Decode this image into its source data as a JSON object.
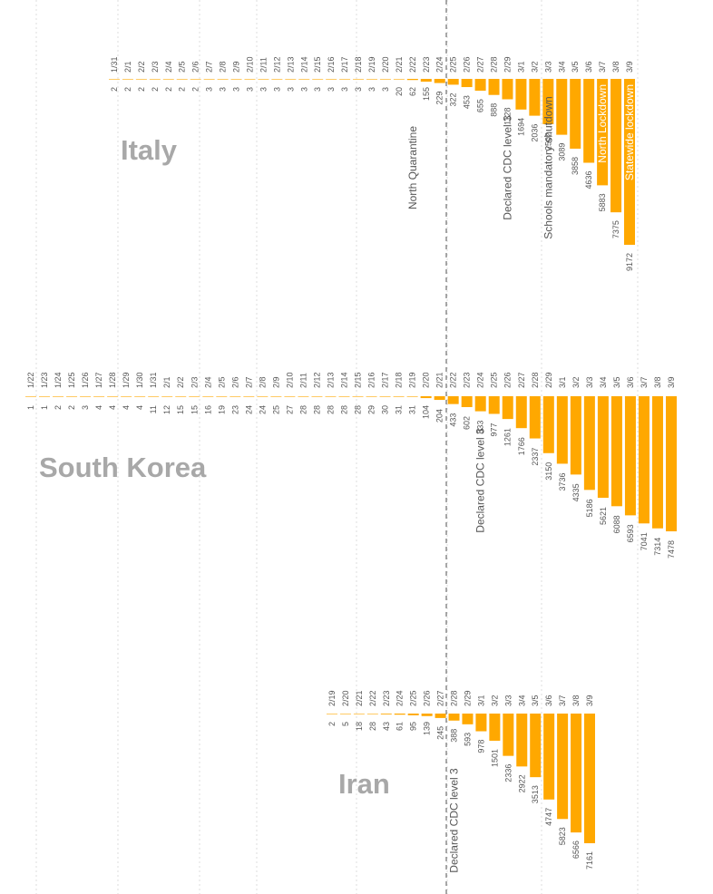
{
  "colors": {
    "bar": "#ffa800",
    "grid": "#dddddd",
    "dashed": "#8c8c8c",
    "title": "#a8a8a8",
    "text": "#555555",
    "inside_text": "#ffffff"
  },
  "chart_data": [
    {
      "type": "bar",
      "orientation": "vertical-down",
      "title": "Italy",
      "categories": [
        "1/31",
        "2/1",
        "2/2",
        "2/3",
        "2/4",
        "2/5",
        "2/6",
        "2/7",
        "2/8",
        "2/9",
        "2/10",
        "2/11",
        "2/12",
        "2/13",
        "2/14",
        "2/15",
        "2/16",
        "2/17",
        "2/18",
        "2/19",
        "2/20",
        "2/21",
        "2/22",
        "2/23",
        "2/24",
        "2/25",
        "2/26",
        "2/27",
        "2/28",
        "2/29",
        "3/1",
        "3/2",
        "3/3",
        "3/4",
        "3/5",
        "3/6",
        "3/7",
        "3/8",
        "3/9"
      ],
      "values": [
        2,
        2,
        2,
        2,
        2,
        2,
        2,
        3,
        3,
        3,
        3,
        3,
        3,
        3,
        3,
        3,
        3,
        3,
        3,
        3,
        3,
        20,
        62,
        155,
        229,
        322,
        453,
        655,
        888,
        1128,
        1694,
        2036,
        2502,
        3089,
        3858,
        4636,
        5883,
        7375,
        9172
      ],
      "ylim": [
        0,
        9172
      ],
      "grid": true,
      "annotations": [
        {
          "category": "2/22",
          "text": "North Quarantine"
        },
        {
          "category": "2/29",
          "text": "Declared CDC level 3"
        },
        {
          "category": "3/3",
          "text": "Schools mandatory shutdown"
        },
        {
          "category": "3/7",
          "text": "North Lockdown"
        },
        {
          "category": "3/9",
          "text": "Statewide lockdown"
        }
      ]
    },
    {
      "type": "bar",
      "orientation": "vertical-down",
      "title": "South Korea",
      "categories": [
        "1/22",
        "1/23",
        "1/24",
        "1/25",
        "1/26",
        "1/27",
        "1/28",
        "1/29",
        "1/30",
        "1/31",
        "2/1",
        "2/2",
        "2/3",
        "2/4",
        "2/5",
        "2/6",
        "2/7",
        "2/8",
        "2/9",
        "2/10",
        "2/11",
        "2/12",
        "2/13",
        "2/14",
        "2/15",
        "2/16",
        "2/17",
        "2/18",
        "2/19",
        "2/20",
        "2/21",
        "2/22",
        "2/23",
        "2/24",
        "2/25",
        "2/26",
        "2/27",
        "2/28",
        "2/29",
        "3/1",
        "3/2",
        "3/3",
        "3/4",
        "3/5",
        "3/6",
        "3/7",
        "3/8",
        "3/9"
      ],
      "values": [
        1,
        1,
        2,
        2,
        3,
        4,
        4,
        4,
        4,
        11,
        12,
        15,
        15,
        16,
        19,
        23,
        24,
        24,
        25,
        27,
        28,
        28,
        28,
        28,
        28,
        29,
        30,
        31,
        31,
        104,
        204,
        433,
        602,
        833,
        977,
        1261,
        1766,
        2337,
        3150,
        3736,
        4335,
        5186,
        5621,
        6088,
        6593,
        7041,
        7314,
        7478
      ],
      "ylim": [
        0,
        7478
      ],
      "grid": true,
      "annotations": [
        {
          "category": "2/24",
          "text": "Declared CDC level 3"
        }
      ]
    },
    {
      "type": "bar",
      "orientation": "vertical-down",
      "title": "Iran",
      "categories": [
        "2/19",
        "2/20",
        "2/21",
        "2/22",
        "2/23",
        "2/24",
        "2/25",
        "2/26",
        "2/27",
        "2/28",
        "2/29",
        "3/1",
        "3/2",
        "3/3",
        "3/4",
        "3/5",
        "3/6",
        "3/7",
        "3/8",
        "3/9"
      ],
      "values": [
        2,
        5,
        18,
        28,
        43,
        61,
        95,
        139,
        245,
        388,
        593,
        978,
        1501,
        2336,
        2922,
        3513,
        4747,
        5823,
        6566,
        7161
      ],
      "ylim": [
        0,
        7161
      ],
      "grid": true,
      "annotations": [
        {
          "category": "2/28",
          "text": "Declared CDC level 3"
        }
      ]
    }
  ]
}
